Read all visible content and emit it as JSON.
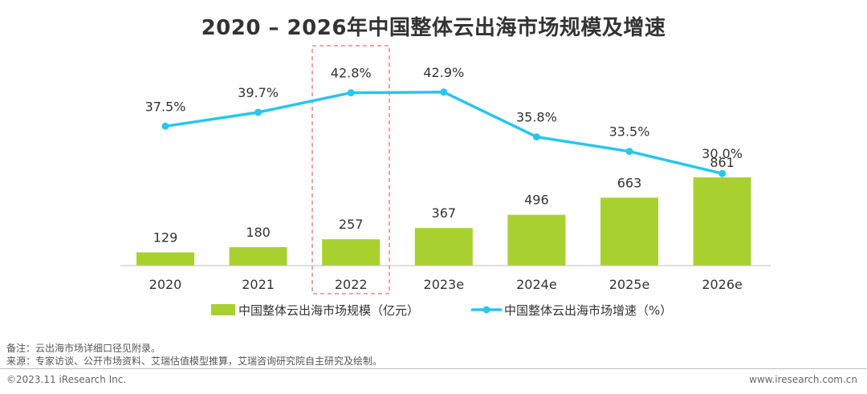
{
  "chart_data": {
    "type": "bar+line",
    "title": "2020 – 2026年中国整体云出海市场规模及增速",
    "categories": [
      "2020",
      "2021",
      "2022",
      "2023e",
      "2024e",
      "2025e",
      "2026e"
    ],
    "series": [
      {
        "name": "中国整体云出海市场规模（亿元）",
        "type": "bar",
        "values": [
          129,
          180,
          257,
          367,
          496,
          663,
          861
        ],
        "labels": [
          "129",
          "180",
          "257",
          "367",
          "496",
          "663",
          "861"
        ],
        "color": "#a8d130"
      },
      {
        "name": "中国整体云出海市场增速（%）",
        "type": "line",
        "values": [
          37.5,
          39.7,
          42.8,
          42.9,
          35.8,
          33.5,
          30.0
        ],
        "labels": [
          "37.5%",
          "39.7%",
          "42.8%",
          "42.9%",
          "35.8%",
          "33.5%",
          "30.0%"
        ],
        "color": "#29c5ef"
      }
    ],
    "highlight_category": "2022",
    "highlight_color": "#e87070"
  },
  "notes": {
    "note": "备注：云出海市场详细口径见附录。",
    "source": "来源：专家访谈、公开市场资料、艾瑞估值模型推算，艾瑞咨询研究院自主研究及绘制。"
  },
  "footer": {
    "copyright": "©2023.11 iResearch Inc.",
    "url": "www.iresearch.com.cn"
  }
}
